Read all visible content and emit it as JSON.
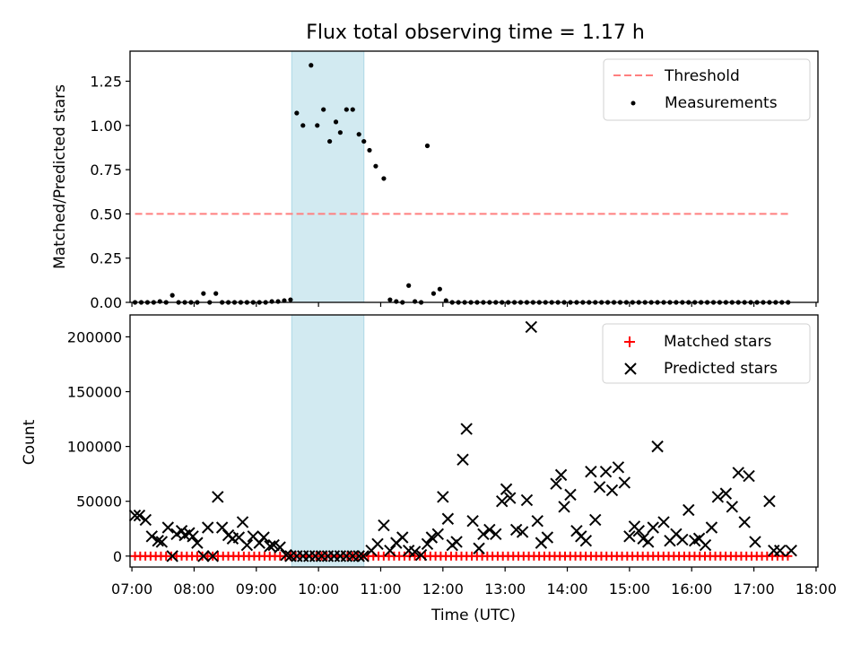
{
  "figure": {
    "title": "Flux total observing time = 1.17 h"
  },
  "colors": {
    "threshold": "#ff7f7f",
    "measurement": "#000000",
    "matched": "#ff0000",
    "predicted": "#000000",
    "highlight_fill": "#add8e6"
  },
  "chart_data": [
    {
      "type": "scatter",
      "ylabel": "Matched/Predicted stars",
      "xlim": [
        6.97,
        18.03
      ],
      "ylim": [
        0,
        1.42
      ],
      "yticks": [
        0.0,
        0.25,
        0.5,
        0.75,
        1.0,
        1.25
      ],
      "ytick_labels": [
        "0.00",
        "0.25",
        "0.50",
        "0.75",
        "1.00",
        "1.25"
      ],
      "highlight_span": [
        9.57,
        10.73
      ],
      "legend_position": "top-right",
      "threshold": {
        "name": "Threshold",
        "value": 0.5,
        "x": [
          7.05,
          17.55
        ],
        "style": "dashed"
      },
      "measurements": {
        "name": "Measurements",
        "x": [
          7.05,
          7.15,
          7.25,
          7.35,
          7.45,
          7.55,
          7.65,
          7.75,
          7.85,
          7.95,
          8.05,
          8.15,
          8.25,
          8.35,
          8.45,
          8.55,
          8.65,
          8.75,
          8.85,
          8.95,
          9.05,
          9.15,
          9.25,
          9.35,
          9.45,
          9.55,
          9.65,
          9.75,
          9.88,
          9.98,
          10.08,
          10.18,
          10.28,
          10.35,
          10.45,
          10.55,
          10.65,
          10.73,
          10.82,
          10.92,
          11.05,
          11.15,
          11.25,
          11.35,
          11.45,
          11.55,
          11.65,
          11.75,
          11.85,
          11.95,
          12.05,
          12.15,
          12.25,
          12.35,
          12.45,
          12.55,
          12.65,
          12.75,
          12.85,
          12.95,
          13.05,
          13.15,
          13.25,
          13.35,
          13.45,
          13.55,
          13.65,
          13.75,
          13.85,
          13.95,
          14.05,
          14.15,
          14.25,
          14.35,
          14.45,
          14.55,
          14.65,
          14.75,
          14.85,
          14.95,
          15.05,
          15.15,
          15.25,
          15.35,
          15.45,
          15.55,
          15.65,
          15.75,
          15.85,
          15.95,
          16.05,
          16.15,
          16.25,
          16.35,
          16.45,
          16.55,
          16.65,
          16.75,
          16.85,
          16.95,
          17.05,
          17.15,
          17.25,
          17.35,
          17.45,
          17.55
        ],
        "y": [
          0,
          0,
          0,
          0,
          0.005,
          0,
          0.04,
          0,
          0,
          0,
          0,
          0.05,
          0,
          0.05,
          0,
          0,
          0,
          0,
          0,
          0,
          0,
          0,
          0.005,
          0.005,
          0.01,
          0.015,
          1.07,
          1.0,
          1.34,
          1.0,
          1.09,
          0.91,
          1.02,
          0.96,
          1.09,
          1.09,
          0.95,
          0.91,
          0.86,
          0.77,
          0.7,
          0.015,
          0.005,
          0,
          0.095,
          0.005,
          0,
          0.885,
          0.05,
          0.075,
          0.01,
          0,
          0,
          0,
          0,
          0,
          0,
          0,
          0,
          0,
          0,
          0,
          0,
          0,
          0,
          0,
          0,
          0,
          0,
          0,
          0,
          0,
          0,
          0,
          0,
          0,
          0,
          0,
          0,
          0,
          0,
          0,
          0,
          0,
          0,
          0,
          0,
          0,
          0,
          0,
          0,
          0,
          0,
          0,
          0,
          0,
          0,
          0,
          0,
          0,
          0,
          0,
          0,
          0,
          0,
          0
        ]
      }
    },
    {
      "type": "scatter",
      "xlabel": "Time (UTC)",
      "ylabel": "Count",
      "xlim": [
        6.97,
        18.03
      ],
      "ylim": [
        -10000,
        220000
      ],
      "yticks": [
        0,
        50000,
        100000,
        150000,
        200000
      ],
      "ytick_labels": [
        "0",
        "50000",
        "100000",
        "150000",
        "200000"
      ],
      "xticks": [
        7,
        8,
        9,
        10,
        11,
        12,
        13,
        14,
        15,
        16,
        17,
        18
      ],
      "xtick_labels": [
        "07:00",
        "08:00",
        "09:00",
        "10:00",
        "11:00",
        "12:00",
        "13:00",
        "14:00",
        "15:00",
        "16:00",
        "17:00",
        "18:00"
      ],
      "highlight_span": [
        9.57,
        10.73
      ],
      "legend_position": "top-right",
      "matched": {
        "name": "Matched stars",
        "x_range": [
          7.05,
          17.6
        ],
        "x_step": 0.0833,
        "value": 0
      },
      "predicted": {
        "name": "Predicted stars",
        "x": [
          7.05,
          7.12,
          7.22,
          7.32,
          7.42,
          7.48,
          7.58,
          7.65,
          7.72,
          7.8,
          7.85,
          7.92,
          7.98,
          8.05,
          8.15,
          8.22,
          8.3,
          8.38,
          8.45,
          8.55,
          8.62,
          8.72,
          8.78,
          8.85,
          8.95,
          9.05,
          9.12,
          9.22,
          9.28,
          9.38,
          9.48,
          9.55,
          9.65,
          9.75,
          9.85,
          9.95,
          10.05,
          10.15,
          10.25,
          10.35,
          10.45,
          10.55,
          10.65,
          10.72,
          10.85,
          10.95,
          11.05,
          11.15,
          11.25,
          11.35,
          11.45,
          11.55,
          11.65,
          11.75,
          11.82,
          11.92,
          12.0,
          12.08,
          12.15,
          12.22,
          12.32,
          12.38,
          12.48,
          12.58,
          12.65,
          12.75,
          12.85,
          12.95,
          13.02,
          13.08,
          13.18,
          13.28,
          13.35,
          13.42,
          13.52,
          13.58,
          13.68,
          13.82,
          13.9,
          13.95,
          14.05,
          14.15,
          14.22,
          14.3,
          14.38,
          14.45,
          14.52,
          14.62,
          14.72,
          14.82,
          14.92,
          15.0,
          15.08,
          15.15,
          15.22,
          15.3,
          15.38,
          15.45,
          15.55,
          15.65,
          15.75,
          15.85,
          15.95,
          16.05,
          16.12,
          16.22,
          16.32,
          16.42,
          16.55,
          16.65,
          16.75,
          16.85,
          16.92,
          17.02,
          17.25,
          17.32,
          17.42,
          17.6
        ],
        "y": [
          37000,
          37000,
          33000,
          18000,
          14000,
          13000,
          26000,
          0,
          20000,
          23000,
          19000,
          21000,
          18000,
          12000,
          0,
          26000,
          0,
          54000,
          26000,
          19000,
          16000,
          17000,
          31000,
          10000,
          18000,
          12000,
          17000,
          9000,
          10000,
          8000,
          1000,
          0,
          0,
          0,
          0,
          0,
          0,
          0,
          0,
          0,
          0,
          0,
          0,
          0,
          5000,
          11000,
          28000,
          5000,
          12000,
          17000,
          5000,
          4000,
          1000,
          11000,
          17000,
          20000,
          54000,
          34000,
          10000,
          13000,
          88000,
          116000,
          32000,
          7000,
          20000,
          24000,
          20000,
          50000,
          61000,
          53000,
          24000,
          22000,
          51000,
          209000,
          32000,
          12000,
          17000,
          66000,
          74000,
          45000,
          56000,
          23000,
          18000,
          14000,
          77000,
          33000,
          63000,
          77000,
          60000,
          81000,
          67000,
          18000,
          27000,
          23000,
          16000,
          13000,
          26000,
          100000,
          31000,
          14000,
          20000,
          15000,
          42000,
          14000,
          16000,
          10000,
          26000,
          54000,
          57000,
          45000,
          76000,
          31000,
          73000,
          13000,
          50000,
          5000,
          5000,
          5000
        ]
      }
    }
  ]
}
